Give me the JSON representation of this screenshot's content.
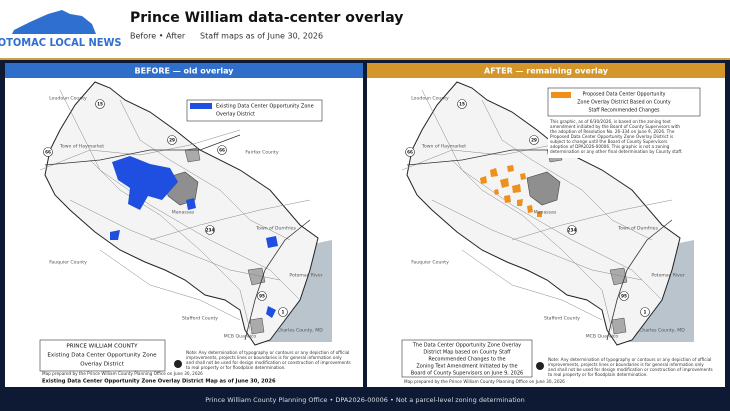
{
  "header": {
    "logo": "POTOMAC LOCAL NEWS",
    "title": "Prince William data-center overlay",
    "nav": "Before • After",
    "subtitle": "Staff maps as of June 30, 2026"
  },
  "panels": [
    {
      "heading": "BEFORE  —  old overlay",
      "legend": [
        "Existing Data Center Opportunity Zone",
        "Overlay District"
      ],
      "map_title": [
        "PRINCE WILLIAM COUNTY",
        "Existing Data Center Opportunity Zone",
        "Overlay District"
      ],
      "prepared": "Map prepared by the Prince William County Planning Office on June 30, 2026",
      "note": [
        "Note: Any determination of typography or contours or any depiction of official",
        "improvements, projects lines or boundaries is for general information only",
        "and shall not be used for design modification or construction of improvements",
        "to real property or for floodplain determination."
      ],
      "caption": "Existing Data Center Opportunity Zone Overlay District Map as of June 30, 2026",
      "places": [
        "Loudoun County",
        "Fairfax County",
        "Fauquier County",
        "Stafford County",
        "Charles County, MD",
        "Town of Dumfries",
        "Town of Haymarket",
        "Manassas",
        "Potomac River",
        "MCB Quantico"
      ],
      "routes": [
        "15",
        "66",
        "29",
        "66",
        "234",
        "95",
        "1"
      ]
    },
    {
      "heading": "AFTER  —  remaining overlay",
      "legend": [
        "Proposed Data Center Opportunity",
        "Zone Overlay District Based on County",
        "Staff Recommended Changes"
      ],
      "paragraph": [
        "This graphic, as of 6/30/2026, is based on the zoning text",
        "amendment initiated by the Board of County Supervisors with",
        "the adoption of Resolution No. 26-334 on June 9, 2026. The",
        "Proposed Data Center Opportunity Zone Overlay District is",
        "subject to change until the Board of County Supervisors",
        "adoption of DPA2026-00006. This graphic is not a zoning",
        "determination or any other final determination by County staff."
      ],
      "map_title": [
        "The Data Center Opportunity Zone Overlay",
        "District Map based on County Staff",
        "Recommended Changes to the",
        "Zoning Text Amendment Initiated by the",
        "Board of County Supervisors on June 9, 2026"
      ],
      "prepared": "Map prepared by the Prince William County Planning Office on June 30, 2026",
      "note": [
        "Note: Any determination of typography or contours or any depiction of official",
        "improvements, projects lines or boundaries is for general information only",
        "and shall not be used for design modification or construction of improvements",
        "to real property or for floodplain determination."
      ],
      "places": [
        "Loudoun County",
        "Fairfax County",
        "Fauquier County",
        "Stafford County",
        "Charles County, MD",
        "Town of Dumfries",
        "Town of Haymarket",
        "Manassas",
        "Potomac River",
        "MCB Quantico"
      ],
      "routes": [
        "15",
        "66",
        "29",
        "66",
        "234",
        "95",
        "1"
      ]
    }
  ],
  "footer": "Prince William County Planning Office • DPA2026-00006 • Not a parcel-level zoning determination"
}
